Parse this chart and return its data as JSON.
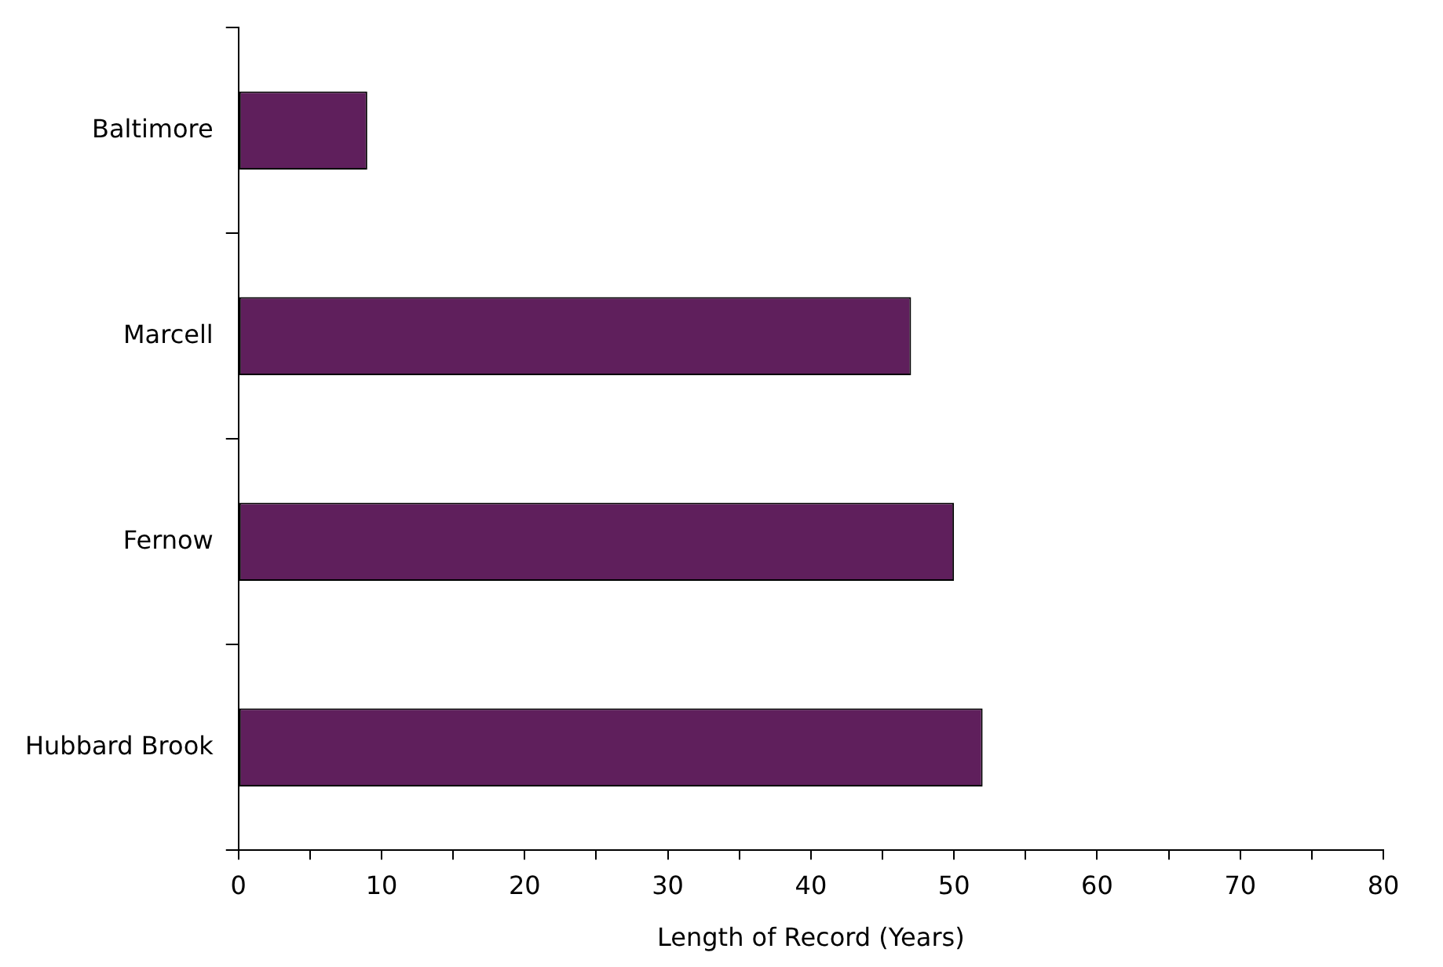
{
  "chart_data": {
    "type": "bar",
    "orientation": "horizontal",
    "categories": [
      "Baltimore",
      "Marcell",
      "Fernow",
      "Hubbard Brook"
    ],
    "values": [
      9,
      47,
      50,
      52
    ],
    "color": "#5f1f5c",
    "xlabel": "Length of Record (Years)",
    "xlim": [
      0,
      80
    ],
    "xticks": [
      0,
      {
        "value": 5,
        "label": null
      },
      10,
      {
        "value": 15,
        "label": null
      },
      20,
      {
        "value": 25,
        "label": null
      },
      30,
      {
        "value": 35,
        "label": null
      },
      40,
      {
        "value": 45,
        "label": null
      },
      50,
      {
        "value": 55,
        "label": null
      },
      60,
      {
        "value": 65,
        "label": null
      },
      70,
      {
        "value": 75,
        "label": null
      },
      80
    ],
    "grid": false,
    "legend": false
  }
}
